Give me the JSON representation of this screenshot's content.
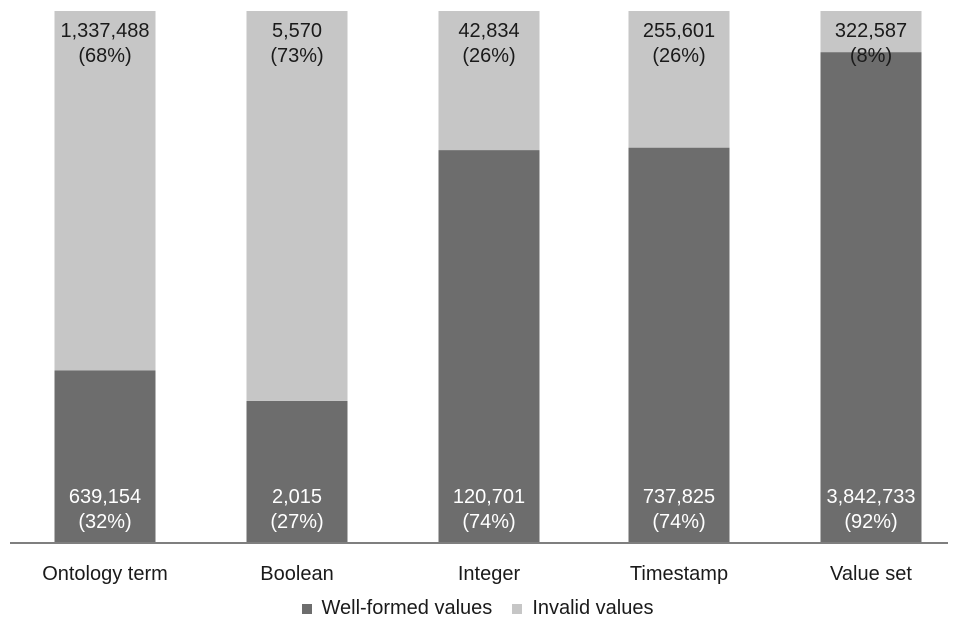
{
  "chart_data": {
    "type": "bar",
    "stacked": true,
    "percent": true,
    "categories": [
      "Ontology term",
      "Boolean",
      "Integer",
      "Timestamp",
      "Value set"
    ],
    "series": [
      {
        "name": "Well-formed values",
        "color": "#6d6d6d",
        "values": [
          639154,
          2015,
          120701,
          737825,
          3842733
        ],
        "labels": [
          "639,154",
          "2,015",
          "120,701",
          "737,825",
          "3,842,733"
        ],
        "percent_labels": [
          "(32%)",
          "(27%)",
          "(74%)",
          "(74%)",
          "(92%)"
        ]
      },
      {
        "name": "Invalid values",
        "color": "#c6c6c6",
        "values": [
          1337488,
          5570,
          42834,
          255601,
          322587
        ],
        "labels": [
          "1,337,488",
          "5,570",
          "42,834",
          "255,601",
          "322,587"
        ],
        "percent_labels": [
          "(68%)",
          "(73%)",
          "(26%)",
          "(26%)",
          "(8%)"
        ]
      }
    ],
    "legend_position": "bottom",
    "grid": false
  }
}
